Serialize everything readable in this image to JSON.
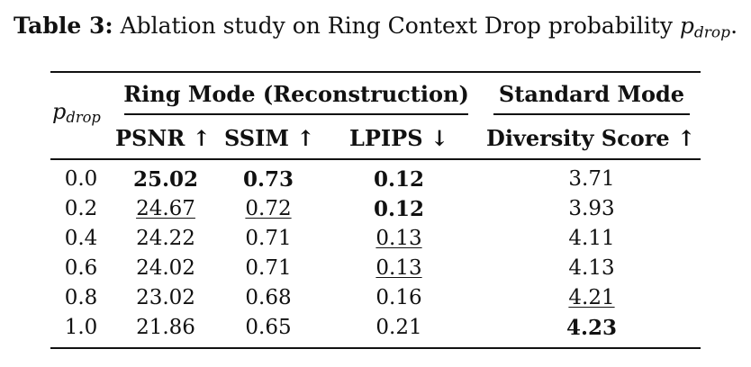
{
  "caption": {
    "label": "Table 3:",
    "text": "Ablation study on Ring Context Drop probability",
    "var": "p",
    "var_sub": "drop",
    "end": "."
  },
  "table": {
    "row_header": {
      "var": "p",
      "sub": "drop"
    },
    "group_ring": "Ring Mode (Reconstruction)",
    "group_standard": "Standard Mode",
    "columns": [
      "PSNR ↑",
      "SSIM ↑",
      "LPIPS ↓",
      "Diversity Score ↑"
    ],
    "rows": [
      {
        "p": "0.0",
        "psnr": "25.02",
        "ssim": "0.73",
        "lpips": "0.12",
        "div": "3.71"
      },
      {
        "p": "0.2",
        "psnr": "24.67",
        "ssim": "0.72",
        "lpips": "0.12",
        "div": "3.93"
      },
      {
        "p": "0.4",
        "psnr": "24.22",
        "ssim": "0.71",
        "lpips": "0.13",
        "div": "4.11"
      },
      {
        "p": "0.6",
        "psnr": "24.02",
        "ssim": "0.71",
        "lpips": "0.13",
        "div": "4.13"
      },
      {
        "p": "0.8",
        "psnr": "23.02",
        "ssim": "0.68",
        "lpips": "0.16",
        "div": "4.21"
      },
      {
        "p": "1.0",
        "psnr": "21.86",
        "ssim": "0.65",
        "lpips": "0.21",
        "div": "4.23"
      }
    ]
  }
}
